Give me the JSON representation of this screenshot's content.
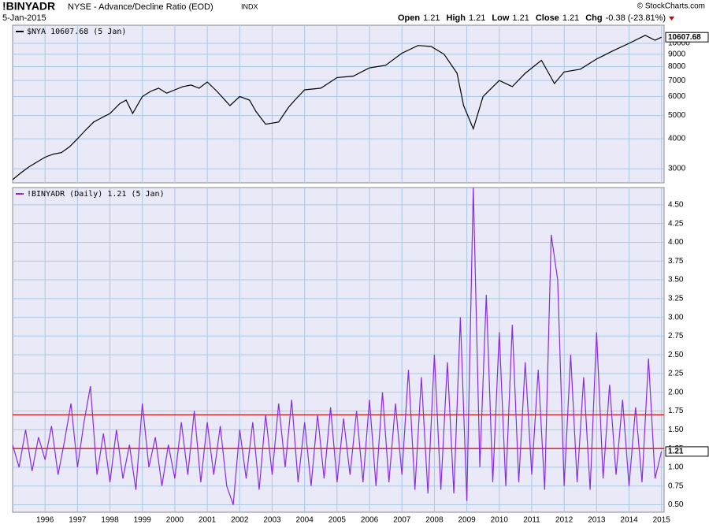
{
  "header": {
    "symbol": "!BINYADR",
    "description": "NYSE - Advance/Decline Ratio (EOD)",
    "exchange": "INDX",
    "date": "5-Jan-2015",
    "brand": "© StockCharts.com",
    "quote": [
      {
        "label": "Open",
        "value": "1.21"
      },
      {
        "label": "High",
        "value": "1.21"
      },
      {
        "label": "Low",
        "value": "1.21"
      },
      {
        "label": "Close",
        "value": "1.21"
      },
      {
        "label": "Chg",
        "value": "-0.38 (-23.81%)"
      }
    ]
  },
  "chart_data": [
    {
      "type": "line",
      "log_scale": true,
      "grid": true,
      "xlim": [
        1995.0,
        2015.08
      ],
      "xticks": [
        1996,
        1997,
        1998,
        1999,
        2000,
        2001,
        2002,
        2003,
        2004,
        2005,
        2006,
        2007,
        2008,
        2009,
        2010,
        2011,
        2012,
        2013,
        2014,
        2015
      ],
      "ylim": [
        2620,
        11900
      ],
      "yticks": [
        3000,
        4000,
        5000,
        6000,
        7000,
        8000,
        9000,
        10000
      ],
      "series": [
        {
          "name": "$NYA 10607.68 (5 Jan)",
          "color": "#000000",
          "x": [
            1995.0,
            1995.25,
            1995.5,
            1995.75,
            1996.0,
            1996.25,
            1996.5,
            1996.75,
            1997.0,
            1997.25,
            1997.5,
            1997.75,
            1998.0,
            1998.3,
            1998.5,
            1998.7,
            1999.0,
            1999.25,
            1999.5,
            1999.75,
            2000.0,
            2000.25,
            2000.5,
            2000.75,
            2001.0,
            2001.3,
            2001.7,
            2002.0,
            2002.3,
            2002.5,
            2002.8,
            2003.2,
            2003.5,
            2003.7,
            2004.0,
            2004.5,
            2005.0,
            2005.5,
            2006.0,
            2006.5,
            2007.0,
            2007.5,
            2007.9,
            2008.3,
            2008.7,
            2008.9,
            2009.2,
            2009.5,
            2010.0,
            2010.4,
            2010.8,
            2011.3,
            2011.7,
            2012.0,
            2012.5,
            2013.0,
            2013.5,
            2014.0,
            2014.5,
            2014.8,
            2015.0
          ],
          "values": [
            2700,
            2880,
            3050,
            3200,
            3350,
            3450,
            3500,
            3700,
            4000,
            4350,
            4700,
            4900,
            5100,
            5600,
            5800,
            5100,
            6000,
            6300,
            6500,
            6200,
            6400,
            6600,
            6700,
            6500,
            6900,
            6300,
            5500,
            6000,
            5800,
            5200,
            4600,
            4700,
            5400,
            5800,
            6400,
            6500,
            7200,
            7300,
            7900,
            8100,
            9100,
            9800,
            9700,
            9000,
            7500,
            5500,
            4400,
            6000,
            7000,
            6600,
            7500,
            8500,
            6800,
            7600,
            7800,
            8600,
            9300,
            10000,
            10800,
            10300,
            10607.68
          ]
        }
      ]
    },
    {
      "type": "line",
      "grid": true,
      "xlim": [
        1995.0,
        2015.08
      ],
      "xticks": [
        1996,
        1997,
        1998,
        1999,
        2000,
        2001,
        2002,
        2003,
        2004,
        2005,
        2006,
        2007,
        2008,
        2009,
        2010,
        2011,
        2012,
        2013,
        2014,
        2015
      ],
      "ylim": [
        0.4,
        4.73
      ],
      "yticks": [
        {
          "value": 0.5,
          "label": "0.50"
        },
        {
          "value": 0.75,
          "label": "0.75"
        },
        {
          "value": 1,
          "label": "1.00"
        },
        {
          "value": 1.25,
          "label": "1.25"
        },
        {
          "value": 1.5,
          "label": "1.50"
        },
        {
          "value": 1.75,
          "label": "1.75"
        },
        {
          "value": 2,
          "label": "2.00"
        },
        {
          "value": 2.25,
          "label": "2.25"
        },
        {
          "value": 2.5,
          "label": "2.50"
        },
        {
          "value": 2.75,
          "label": "2.75"
        },
        {
          "value": 3,
          "label": "3.00"
        },
        {
          "value": 3.25,
          "label": "3.25"
        },
        {
          "value": 3.5,
          "label": "3.50"
        },
        {
          "value": 3.75,
          "label": "3.75"
        },
        {
          "value": 4,
          "label": "4.00"
        },
        {
          "value": 4.25,
          "label": "4.25"
        },
        {
          "value": 4.5,
          "label": "4.50"
        }
      ],
      "hlines": [
        1.25,
        1.7
      ],
      "hline_color": "#cc0000",
      "series": [
        {
          "name": "!BINYADR (Daily) 1.21 (5 Jan)",
          "color": "#8a2be2",
          "x": [
            1995.0,
            1995.2,
            1995.4,
            1995.6,
            1995.8,
            1996.0,
            1996.2,
            1996.4,
            1996.6,
            1996.8,
            1997.0,
            1997.2,
            1997.4,
            1997.6,
            1997.8,
            1998.0,
            1998.2,
            1998.4,
            1998.6,
            1998.8,
            1999.0,
            1999.2,
            1999.4,
            1999.6,
            1999.8,
            2000.0,
            2000.2,
            2000.4,
            2000.6,
            2000.8,
            2001.0,
            2001.2,
            2001.4,
            2001.6,
            2001.8,
            2002.0,
            2002.2,
            2002.4,
            2002.6,
            2002.8,
            2003.0,
            2003.2,
            2003.4,
            2003.6,
            2003.8,
            2004.0,
            2004.2,
            2004.4,
            2004.6,
            2004.8,
            2005.0,
            2005.2,
            2005.4,
            2005.6,
            2005.8,
            2006.0,
            2006.2,
            2006.4,
            2006.6,
            2006.8,
            2007.0,
            2007.2,
            2007.4,
            2007.6,
            2007.8,
            2008.0,
            2008.2,
            2008.4,
            2008.6,
            2008.8,
            2009.0,
            2009.2,
            2009.4,
            2009.6,
            2009.8,
            2010.0,
            2010.2,
            2010.4,
            2010.6,
            2010.8,
            2011.0,
            2011.2,
            2011.4,
            2011.6,
            2011.8,
            2012.0,
            2012.2,
            2012.4,
            2012.6,
            2012.8,
            2013.0,
            2013.2,
            2013.4,
            2013.6,
            2013.8,
            2014.0,
            2014.2,
            2014.4,
            2014.6,
            2014.8,
            2015.0
          ],
          "values": [
            1.3,
            1.0,
            1.5,
            0.95,
            1.4,
            1.1,
            1.55,
            0.9,
            1.35,
            1.85,
            1.0,
            1.6,
            2.08,
            0.9,
            1.45,
            0.8,
            1.5,
            0.85,
            1.3,
            0.7,
            1.85,
            1.0,
            1.4,
            0.75,
            1.3,
            0.85,
            1.6,
            0.9,
            1.75,
            0.8,
            1.6,
            0.9,
            1.55,
            0.75,
            0.5,
            1.5,
            0.85,
            1.6,
            0.7,
            1.7,
            0.9,
            1.85,
            1.0,
            1.9,
            0.8,
            1.6,
            0.75,
            1.7,
            0.85,
            1.8,
            0.8,
            1.65,
            0.9,
            1.75,
            0.8,
            1.9,
            0.75,
            2.0,
            0.8,
            1.85,
            0.9,
            2.3,
            0.7,
            2.2,
            0.65,
            2.5,
            0.7,
            2.4,
            0.65,
            3.0,
            0.55,
            4.73,
            1.0,
            3.3,
            0.8,
            2.8,
            0.75,
            2.9,
            0.8,
            2.4,
            0.9,
            2.3,
            0.7,
            4.1,
            3.5,
            0.75,
            2.5,
            0.8,
            2.2,
            0.7,
            2.8,
            0.85,
            2.1,
            0.9,
            1.9,
            0.75,
            1.8,
            0.8,
            2.45,
            0.85,
            1.21
          ]
        }
      ]
    }
  ]
}
